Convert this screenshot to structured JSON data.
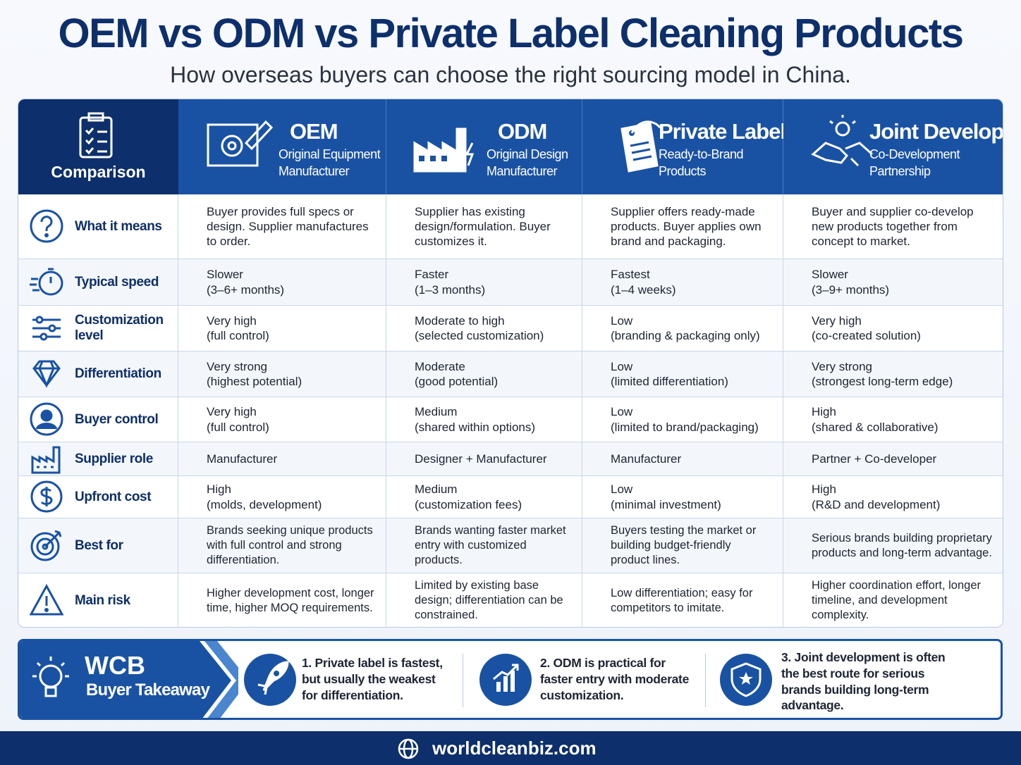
{
  "header": {
    "title": "OEM vs ODM vs Private Label Cleaning Products",
    "subtitle": "How overseas buyers can choose the right sourcing model in China."
  },
  "table": {
    "corner": "Comparison",
    "columns": [
      {
        "name": "OEM",
        "subtitle": "Original Equipment\nManufacturer"
      },
      {
        "name": "ODM",
        "subtitle": "Original Design\nManufacturer"
      },
      {
        "name": "Private Label",
        "subtitle": "Ready-to-Brand\nProducts"
      },
      {
        "name": "Joint Development",
        "subtitle": "Co-Development\nPartnership"
      }
    ],
    "rows": [
      {
        "label": "What it means",
        "cells": [
          "Buyer provides full specs or design. Supplier manufactures to order.",
          "Supplier has existing design/formulation. Buyer customizes it.",
          "Supplier offers ready-made products. Buyer applies own brand and packaging.",
          "Buyer and supplier co-develop new products together from concept to market."
        ]
      },
      {
        "label": "Typical speed",
        "cells": [
          "Slower\n(3–6+ months)",
          "Faster\n(1–3 months)",
          "Fastest\n(1–4 weeks)",
          "Slower\n(3–9+ months)"
        ]
      },
      {
        "label": "Customization level",
        "cells": [
          "Very high\n(full control)",
          "Moderate to high\n(selected customization)",
          "Low\n(branding & packaging only)",
          "Very high\n(co-created solution)"
        ]
      },
      {
        "label": "Differentiation",
        "cells": [
          "Very strong\n(highest potential)",
          "Moderate\n(good potential)",
          "Low\n(limited differentiation)",
          "Very strong\n(strongest long-term edge)"
        ]
      },
      {
        "label": "Buyer control",
        "cells": [
          "Very high\n(full control)",
          "Medium\n(shared within options)",
          "Low\n(limited to brand/packaging)",
          "High\n(shared & collaborative)"
        ]
      },
      {
        "label": "Supplier role",
        "cells": [
          "Manufacturer",
          "Designer + Manufacturer",
          "Manufacturer",
          "Partner + Co-developer"
        ]
      },
      {
        "label": "Upfront cost",
        "cells": [
          "High\n(molds, development)",
          "Medium\n(customization fees)",
          "Low\n(minimal investment)",
          "High\n(R&D and development)"
        ]
      },
      {
        "label": "Best for",
        "cells": [
          "Brands seeking unique products with full control and strong differentiation.",
          "Brands wanting faster market entry with customized products.",
          "Buyers testing the market or building budget-friendly product lines.",
          "Serious brands building proprietary products and long-term advantage."
        ]
      },
      {
        "label": "Main risk",
        "cells": [
          "Higher development cost, longer time, higher MOQ requirements.",
          "Limited by existing base design; differentiation can be constrained.",
          "Low differentiation; easy for competitors to imitate.",
          "Higher coordination effort, longer timeline, and development complexity."
        ]
      }
    ]
  },
  "takeaway": {
    "brand": "WCB",
    "title": "Buyer Takeaway",
    "points": [
      "1. Private label is fastest, but usually the weakest for differentiation.",
      "2. ODM is practical for faster entry with moderate customization.",
      "3. Joint development is often the best route for serious brands building long-term advantage."
    ]
  },
  "footer": {
    "url": "worldcleanbiz.com"
  }
}
